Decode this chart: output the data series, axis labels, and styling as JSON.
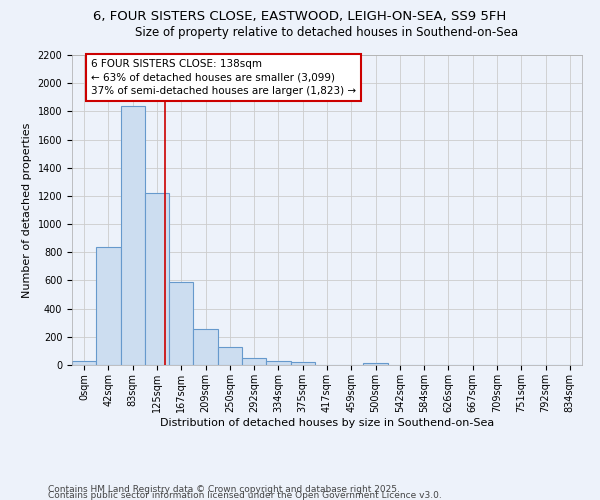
{
  "title_line1": "6, FOUR SISTERS CLOSE, EASTWOOD, LEIGH-ON-SEA, SS9 5FH",
  "title_line2": "Size of property relative to detached houses in Southend-on-Sea",
  "xlabel": "Distribution of detached houses by size in Southend-on-Sea",
  "ylabel": "Number of detached properties",
  "bar_labels": [
    "0sqm",
    "42sqm",
    "83sqm",
    "125sqm",
    "167sqm",
    "209sqm",
    "250sqm",
    "292sqm",
    "334sqm",
    "375sqm",
    "417sqm",
    "459sqm",
    "500sqm",
    "542sqm",
    "584sqm",
    "626sqm",
    "667sqm",
    "709sqm",
    "751sqm",
    "792sqm",
    "834sqm"
  ],
  "bar_values": [
    25,
    840,
    1840,
    1220,
    590,
    255,
    130,
    50,
    30,
    18,
    0,
    0,
    12,
    0,
    0,
    0,
    0,
    0,
    0,
    0,
    0
  ],
  "bar_color": "#ccddf0",
  "bar_edge_color": "#6699cc",
  "red_line_x": 3.31,
  "annotation_text": "6 FOUR SISTERS CLOSE: 138sqm\n← 63% of detached houses are smaller (3,099)\n37% of semi-detached houses are larger (1,823) →",
  "annotation_box_color": "#ffffff",
  "annotation_box_edge": "#cc0000",
  "ylim": [
    0,
    2200
  ],
  "yticks": [
    0,
    200,
    400,
    600,
    800,
    1000,
    1200,
    1400,
    1600,
    1800,
    2000,
    2200
  ],
  "grid_color": "#cccccc",
  "bg_color": "#edf2fa",
  "footer_line1": "Contains HM Land Registry data © Crown copyright and database right 2025.",
  "footer_line2": "Contains public sector information licensed under the Open Government Licence v3.0.",
  "title_fontsize": 9.5,
  "subtitle_fontsize": 8.5,
  "axis_label_fontsize": 8,
  "tick_fontsize": 7,
  "annotation_fontsize": 7.5,
  "footer_fontsize": 6.5
}
